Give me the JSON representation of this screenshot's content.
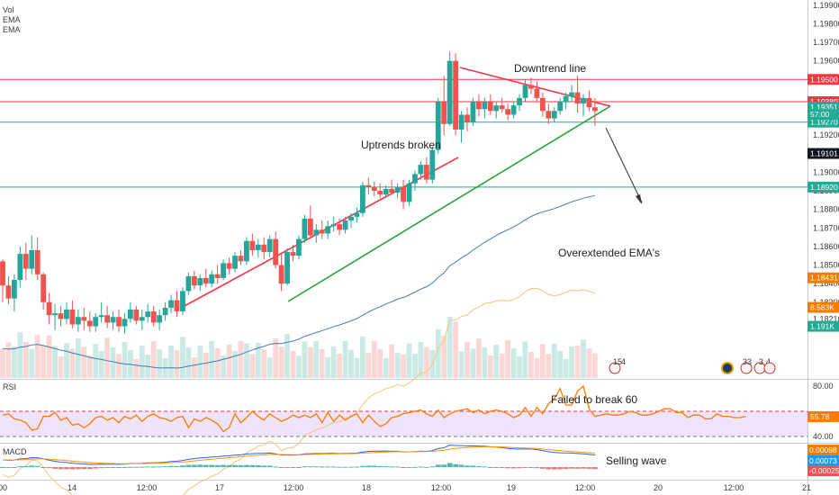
{
  "chart_data": {
    "type": "candlestick",
    "legend": [
      "Vol",
      "EMA",
      "EMA"
    ],
    "price_ticks": [
      "1.19900",
      "1.19800",
      "1.19700",
      "1.19600",
      "1.19200",
      "1.19000",
      "1.18900",
      "1.18800",
      "1.18700",
      "1.18600",
      "1.18500",
      "1.18400",
      "1.18300",
      "1.18210"
    ],
    "x_ticks": [
      "00",
      "14",
      "12:00",
      "17",
      "12:00",
      "18",
      "12:00",
      "19",
      "12:00",
      "20",
      "12:00",
      "21"
    ],
    "levels": [
      {
        "label": "1.19500",
        "value": 1.195,
        "color": "#f23645"
      },
      {
        "label": "1.19380",
        "value": 1.1938,
        "color": "#f23645"
      },
      {
        "label": "1.19270",
        "value": 1.1927,
        "color": "#22ab94"
      },
      {
        "label": "1.18920",
        "value": 1.1892,
        "color": "#22ab94"
      }
    ],
    "badges": [
      {
        "label": "1.19351",
        "value": 1.19351,
        "color": "#22ab94"
      },
      {
        "label": "57:00",
        "value": 1.19311,
        "color": "#22ab94"
      },
      {
        "label": "1.19101",
        "value": 1.19101,
        "color": "#131722"
      },
      {
        "label": "1.18431",
        "value": 1.18431,
        "color": "#f57c00"
      },
      {
        "label": "8.583K",
        "value": 1.18272,
        "color": "#f57c00"
      },
      {
        "label": "1.191K",
        "value": 1.1817,
        "color": "#22ab94"
      }
    ],
    "annotations": [
      "Downtrend line",
      "Uptrends broken",
      "Overextended EMA's",
      "Failed to break 60",
      "Selling wave"
    ],
    "event_labels": [
      "15",
      "4",
      "33",
      "3",
      "4"
    ],
    "rsi": {
      "label": "RSI",
      "ticks": [
        "80.00",
        "40.00"
      ],
      "levels": [
        60,
        40
      ],
      "current": "55.78",
      "values": [
        57,
        58,
        54,
        53,
        51,
        45,
        46,
        56,
        56,
        59,
        53,
        55,
        49,
        50,
        47,
        50,
        55,
        56,
        53,
        55,
        51,
        56,
        54,
        57,
        52,
        56,
        58,
        55,
        54,
        52,
        55,
        56,
        47,
        54,
        52,
        55,
        53,
        50,
        44,
        47,
        58,
        51,
        55,
        60,
        56,
        53,
        58,
        55,
        52,
        54,
        57,
        55,
        57,
        55,
        58,
        51,
        59,
        52,
        57,
        53,
        56,
        58,
        51,
        57,
        52,
        48,
        50,
        55,
        56,
        58,
        59,
        60,
        61,
        58,
        56,
        61,
        55,
        58,
        60,
        61,
        62,
        59,
        61,
        58,
        60,
        61,
        60,
        58,
        55,
        57,
        63,
        56,
        63,
        58,
        66,
        70,
        78,
        65,
        65,
        76,
        80,
        62,
        56,
        57,
        58,
        57,
        57,
        58,
        60,
        59,
        57,
        57,
        58,
        60,
        62,
        62,
        59,
        59,
        55,
        57,
        57,
        54,
        54,
        58,
        56,
        56,
        55,
        55,
        56
      ]
    },
    "macd": {
      "label": "MACD",
      "ticks": [
        "0.00098",
        "0.00073",
        "-0.00025"
      ],
      "current": [
        "0.00098",
        "0.00073",
        "-0.00025"
      ]
    },
    "candles": [
      {
        "o": 1.1852,
        "h": 1.1853,
        "l": 1.183,
        "c": 1.1839
      },
      {
        "o": 1.1839,
        "h": 1.1844,
        "l": 1.1829,
        "c": 1.1832
      },
      {
        "o": 1.1832,
        "h": 1.1845,
        "l": 1.1825,
        "c": 1.1842
      },
      {
        "o": 1.1842,
        "h": 1.186,
        "l": 1.1838,
        "c": 1.1856
      },
      {
        "o": 1.1856,
        "h": 1.1862,
        "l": 1.1842,
        "c": 1.1848
      },
      {
        "o": 1.1848,
        "h": 1.1866,
        "l": 1.1845,
        "c": 1.1858
      },
      {
        "o": 1.1858,
        "h": 1.1865,
        "l": 1.1842,
        "c": 1.1845
      },
      {
        "o": 1.1845,
        "h": 1.1846,
        "l": 1.1826,
        "c": 1.183
      },
      {
        "o": 1.183,
        "h": 1.1835,
        "l": 1.1818,
        "c": 1.1823
      },
      {
        "o": 1.1823,
        "h": 1.1829,
        "l": 1.1815,
        "c": 1.1824
      },
      {
        "o": 1.1824,
        "h": 1.1828,
        "l": 1.1817,
        "c": 1.1821
      },
      {
        "o": 1.1821,
        "h": 1.183,
        "l": 1.1818,
        "c": 1.1826
      },
      {
        "o": 1.1826,
        "h": 1.1831,
        "l": 1.1816,
        "c": 1.1818
      },
      {
        "o": 1.1818,
        "h": 1.1826,
        "l": 1.1814,
        "c": 1.1822
      },
      {
        "o": 1.1822,
        "h": 1.1827,
        "l": 1.1815,
        "c": 1.182
      },
      {
        "o": 1.182,
        "h": 1.1825,
        "l": 1.1814,
        "c": 1.1817
      },
      {
        "o": 1.1817,
        "h": 1.1824,
        "l": 1.1814,
        "c": 1.1822
      },
      {
        "o": 1.1822,
        "h": 1.183,
        "l": 1.1819,
        "c": 1.1823
      },
      {
        "o": 1.1823,
        "h": 1.1828,
        "l": 1.1816,
        "c": 1.1819
      },
      {
        "o": 1.1819,
        "h": 1.1825,
        "l": 1.1815,
        "c": 1.1822
      },
      {
        "o": 1.1822,
        "h": 1.1826,
        "l": 1.1814,
        "c": 1.1817
      },
      {
        "o": 1.1817,
        "h": 1.1824,
        "l": 1.1813,
        "c": 1.1821
      },
      {
        "o": 1.1821,
        "h": 1.183,
        "l": 1.1819,
        "c": 1.1826
      },
      {
        "o": 1.1826,
        "h": 1.1828,
        "l": 1.1818,
        "c": 1.182
      },
      {
        "o": 1.182,
        "h": 1.1826,
        "l": 1.1815,
        "c": 1.1822
      },
      {
        "o": 1.1822,
        "h": 1.1829,
        "l": 1.1819,
        "c": 1.1825
      },
      {
        "o": 1.1825,
        "h": 1.1828,
        "l": 1.1817,
        "c": 1.1819
      },
      {
        "o": 1.1819,
        "h": 1.1826,
        "l": 1.1815,
        "c": 1.1823
      },
      {
        "o": 1.1823,
        "h": 1.183,
        "l": 1.182,
        "c": 1.1827
      },
      {
        "o": 1.1827,
        "h": 1.1834,
        "l": 1.1824,
        "c": 1.1831
      },
      {
        "o": 1.1831,
        "h": 1.1836,
        "l": 1.1822,
        "c": 1.1825
      },
      {
        "o": 1.1825,
        "h": 1.1838,
        "l": 1.1823,
        "c": 1.1836
      },
      {
        "o": 1.1836,
        "h": 1.1846,
        "l": 1.1834,
        "c": 1.1844
      },
      {
        "o": 1.1844,
        "h": 1.1847,
        "l": 1.1837,
        "c": 1.1839
      },
      {
        "o": 1.1839,
        "h": 1.1845,
        "l": 1.1836,
        "c": 1.1843
      },
      {
        "o": 1.1843,
        "h": 1.1848,
        "l": 1.1838,
        "c": 1.184
      },
      {
        "o": 1.184,
        "h": 1.1847,
        "l": 1.1838,
        "c": 1.1845
      },
      {
        "o": 1.1845,
        "h": 1.185,
        "l": 1.184,
        "c": 1.1843
      },
      {
        "o": 1.1843,
        "h": 1.1853,
        "l": 1.1842,
        "c": 1.1851
      },
      {
        "o": 1.1851,
        "h": 1.1854,
        "l": 1.1845,
        "c": 1.1848
      },
      {
        "o": 1.1848,
        "h": 1.1857,
        "l": 1.1846,
        "c": 1.1855
      },
      {
        "o": 1.1855,
        "h": 1.1858,
        "l": 1.185,
        "c": 1.1852
      },
      {
        "o": 1.1852,
        "h": 1.1865,
        "l": 1.185,
        "c": 1.1863
      },
      {
        "o": 1.1863,
        "h": 1.1867,
        "l": 1.1855,
        "c": 1.1858
      },
      {
        "o": 1.1858,
        "h": 1.1864,
        "l": 1.1854,
        "c": 1.1861
      },
      {
        "o": 1.1861,
        "h": 1.1865,
        "l": 1.1853,
        "c": 1.1857
      },
      {
        "o": 1.1857,
        "h": 1.1866,
        "l": 1.1854,
        "c": 1.1864
      },
      {
        "o": 1.1864,
        "h": 1.1868,
        "l": 1.1848,
        "c": 1.185
      },
      {
        "o": 1.185,
        "h": 1.1856,
        "l": 1.1836,
        "c": 1.184
      },
      {
        "o": 1.184,
        "h": 1.1859,
        "l": 1.1839,
        "c": 1.1857
      },
      {
        "o": 1.1857,
        "h": 1.1861,
        "l": 1.1852,
        "c": 1.1855
      },
      {
        "o": 1.1855,
        "h": 1.1866,
        "l": 1.1853,
        "c": 1.1864
      },
      {
        "o": 1.1864,
        "h": 1.1877,
        "l": 1.1862,
        "c": 1.1875
      },
      {
        "o": 1.1875,
        "h": 1.1882,
        "l": 1.1864,
        "c": 1.1866
      },
      {
        "o": 1.1866,
        "h": 1.1872,
        "l": 1.1862,
        "c": 1.1869
      },
      {
        "o": 1.1869,
        "h": 1.1874,
        "l": 1.1864,
        "c": 1.1867
      },
      {
        "o": 1.1867,
        "h": 1.1874,
        "l": 1.1864,
        "c": 1.1871
      },
      {
        "o": 1.1871,
        "h": 1.1876,
        "l": 1.1868,
        "c": 1.1872
      },
      {
        "o": 1.1872,
        "h": 1.1875,
        "l": 1.1866,
        "c": 1.1869
      },
      {
        "o": 1.1869,
        "h": 1.1876,
        "l": 1.1867,
        "c": 1.1874
      },
      {
        "o": 1.1874,
        "h": 1.1878,
        "l": 1.187,
        "c": 1.1876
      },
      {
        "o": 1.1876,
        "h": 1.1881,
        "l": 1.1873,
        "c": 1.1878
      },
      {
        "o": 1.1878,
        "h": 1.1895,
        "l": 1.1876,
        "c": 1.1893
      },
      {
        "o": 1.1893,
        "h": 1.1897,
        "l": 1.1888,
        "c": 1.1892
      },
      {
        "o": 1.1892,
        "h": 1.1895,
        "l": 1.1887,
        "c": 1.189
      },
      {
        "o": 1.189,
        "h": 1.1894,
        "l": 1.1886,
        "c": 1.1888
      },
      {
        "o": 1.1888,
        "h": 1.1893,
        "l": 1.1886,
        "c": 1.1891
      },
      {
        "o": 1.1891,
        "h": 1.1896,
        "l": 1.1888,
        "c": 1.1889
      },
      {
        "o": 1.1889,
        "h": 1.1894,
        "l": 1.1886,
        "c": 1.1892
      },
      {
        "o": 1.1892,
        "h": 1.1896,
        "l": 1.188,
        "c": 1.1884
      },
      {
        "o": 1.1884,
        "h": 1.1896,
        "l": 1.1882,
        "c": 1.1894
      },
      {
        "o": 1.1894,
        "h": 1.1901,
        "l": 1.189,
        "c": 1.1899
      },
      {
        "o": 1.1899,
        "h": 1.1906,
        "l": 1.1896,
        "c": 1.1904
      },
      {
        "o": 1.1904,
        "h": 1.1908,
        "l": 1.1894,
        "c": 1.1896
      },
      {
        "o": 1.1896,
        "h": 1.1914,
        "l": 1.1894,
        "c": 1.1912
      },
      {
        "o": 1.1912,
        "h": 1.194,
        "l": 1.191,
        "c": 1.1938
      },
      {
        "o": 1.1938,
        "h": 1.1952,
        "l": 1.192,
        "c": 1.1926
      },
      {
        "o": 1.1926,
        "h": 1.1965,
        "l": 1.1925,
        "c": 1.196
      },
      {
        "o": 1.196,
        "h": 1.1964,
        "l": 1.192,
        "c": 1.1923
      },
      {
        "o": 1.1923,
        "h": 1.1933,
        "l": 1.1916,
        "c": 1.1931
      },
      {
        "o": 1.1931,
        "h": 1.1935,
        "l": 1.1922,
        "c": 1.1927
      },
      {
        "o": 1.1927,
        "h": 1.194,
        "l": 1.1925,
        "c": 1.1938
      },
      {
        "o": 1.1938,
        "h": 1.1942,
        "l": 1.193,
        "c": 1.1934
      },
      {
        "o": 1.1934,
        "h": 1.194,
        "l": 1.1929,
        "c": 1.1938
      },
      {
        "o": 1.1938,
        "h": 1.1942,
        "l": 1.1931,
        "c": 1.1933
      },
      {
        "o": 1.1933,
        "h": 1.1938,
        "l": 1.1929,
        "c": 1.1936
      },
      {
        "o": 1.1936,
        "h": 1.194,
        "l": 1.1932,
        "c": 1.1934
      },
      {
        "o": 1.1934,
        "h": 1.1937,
        "l": 1.1928,
        "c": 1.1931
      },
      {
        "o": 1.1931,
        "h": 1.1938,
        "l": 1.1929,
        "c": 1.1936
      },
      {
        "o": 1.1936,
        "h": 1.1942,
        "l": 1.1933,
        "c": 1.194
      },
      {
        "o": 1.194,
        "h": 1.195,
        "l": 1.1938,
        "c": 1.1947
      },
      {
        "o": 1.1947,
        "h": 1.1951,
        "l": 1.1942,
        "c": 1.1945
      },
      {
        "o": 1.1945,
        "h": 1.1949,
        "l": 1.1938,
        "c": 1.194
      },
      {
        "o": 1.194,
        "h": 1.1943,
        "l": 1.193,
        "c": 1.1933
      },
      {
        "o": 1.1933,
        "h": 1.1937,
        "l": 1.1926,
        "c": 1.1929
      },
      {
        "o": 1.1929,
        "h": 1.1935,
        "l": 1.1927,
        "c": 1.1933
      },
      {
        "o": 1.1933,
        "h": 1.194,
        "l": 1.1931,
        "c": 1.1938
      },
      {
        "o": 1.1938,
        "h": 1.1943,
        "l": 1.1934,
        "c": 1.1941
      },
      {
        "o": 1.1941,
        "h": 1.1947,
        "l": 1.1938,
        "c": 1.1943
      },
      {
        "o": 1.1943,
        "h": 1.1952,
        "l": 1.1932,
        "c": 1.1937
      },
      {
        "o": 1.1937,
        "h": 1.1942,
        "l": 1.193,
        "c": 1.194
      },
      {
        "o": 1.194,
        "h": 1.1944,
        "l": 1.1933,
        "c": 1.1935
      },
      {
        "o": 1.1935,
        "h": 1.194,
        "l": 1.1925,
        "c": 1.1933
      }
    ]
  }
}
